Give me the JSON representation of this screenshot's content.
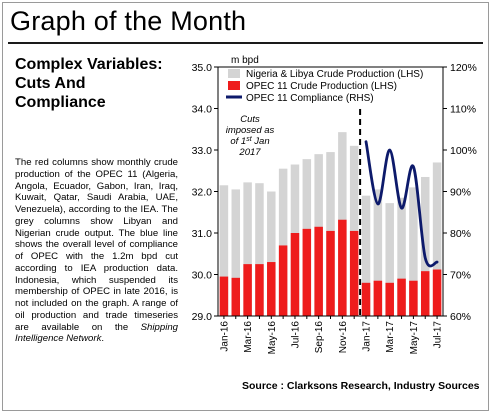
{
  "page": {
    "title": "Graph of the Month",
    "heading_line1": "Complex Variables:",
    "heading_line2": "Cuts And",
    "heading_line3": "Compliance",
    "body_main": "The red columns show monthly crude production of the OPEC 11 (Algeria, Angola, Ecuador, Gabon, Iran, Iraq, Kuwait, Qatar, Saudi Arabia, UAE, Venezuela), according to the IEA. The grey columns show Libyan and Nigerian crude output. The blue line shows the overall level of compliance of OPEC with the 1.2m bpd cut according to IEA production data. Indonesia, which suspended its membership of OPEC in late 2016, is not included on the graph. A range of oil production and trade timeseries are available on the ",
    "body_link": "Shipping Intelligence Network",
    "body_end": ".",
    "source": "Source : Clarksons Research, Industry Sources"
  },
  "chart_data": {
    "type": "bar",
    "ylabel": "m bpd",
    "ylim": [
      29.0,
      35.0
    ],
    "yticks": [
      "29.0",
      "30.0",
      "31.0",
      "32.0",
      "33.0",
      "34.0",
      "35.0"
    ],
    "y2lim": [
      60,
      120
    ],
    "y2ticks": [
      "60%",
      "70%",
      "80%",
      "90%",
      "100%",
      "110%",
      "120%"
    ],
    "months": [
      "Jan-16",
      "Feb-16",
      "Mar-16",
      "Apr-16",
      "May-16",
      "Jun-16",
      "Jul-16",
      "Aug-16",
      "Sep-16",
      "Oct-16",
      "Nov-16",
      "Dec-16",
      "Jan-17",
      "Feb-17",
      "Mar-17",
      "Apr-17",
      "May-17",
      "Jun-17",
      "Jul-17"
    ],
    "tick_labels": [
      "Jan-16",
      "Mar-16",
      "May-16",
      "Jul-16",
      "Sep-16",
      "Nov-16",
      "Jan-17",
      "Mar-17",
      "May-17",
      "Jul-17"
    ],
    "series": [
      {
        "name": "Nigeria & Libya Crude Production (LHS)",
        "color": "#d4d4d4",
        "values": [
          32.15,
          32.05,
          32.22,
          32.2,
          32.0,
          32.55,
          32.65,
          32.78,
          32.9,
          32.95,
          33.43,
          33.1,
          31.9,
          32.05,
          31.72,
          31.85,
          32.1,
          32.35,
          32.7
        ]
      },
      {
        "name": "OPEC 11 Crude Production (LHS)",
        "color": "#ee1c1c",
        "values": [
          29.95,
          29.92,
          30.25,
          30.25,
          30.3,
          30.7,
          31.0,
          31.1,
          31.15,
          31.05,
          31.32,
          31.05,
          29.8,
          29.85,
          29.8,
          29.9,
          29.85,
          30.08,
          30.12
        ]
      },
      {
        "name": "OPEC 11 Compliance (RHS)",
        "color": "#0d1a6b",
        "start_index": 12,
        "values": [
          102,
          87,
          100,
          86,
          96,
          74,
          73
        ]
      }
    ],
    "annotation_lines": [
      "Cuts",
      "imposed as",
      "of 1st Jan",
      "2017"
    ],
    "legend_position": "top-right",
    "grid": false
  }
}
